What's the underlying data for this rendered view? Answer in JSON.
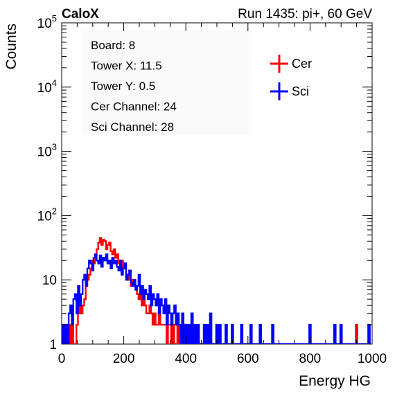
{
  "header": {
    "brand": "CaloX",
    "run_label": "Run 1435: pi+, 60 GeV"
  },
  "info_box": {
    "lines": [
      "Board: 8",
      "Tower X: 11.5",
      "Tower Y: 0.5",
      "Cer Channel: 24",
      "Sci Channel: 28"
    ]
  },
  "chart_data": {
    "type": "line",
    "style": "step-histogram",
    "xlabel": "Energy HG",
    "ylabel": "Counts",
    "xlim": [
      0,
      1000
    ],
    "ylim": [
      1,
      100000
    ],
    "y_scale": "log",
    "x_ticks": [
      0,
      200,
      400,
      600,
      800,
      1000
    ],
    "x_tick_labels": [
      "0",
      "200",
      "400",
      "600",
      "800",
      "1000"
    ],
    "y_ticks": [
      1,
      10,
      100,
      1000,
      10000,
      100000
    ],
    "y_tick_labels": [
      "1",
      "10",
      "10^2",
      "10^3",
      "10^4",
      "10^5"
    ],
    "legend_position": "top-right",
    "grid": false,
    "series": [
      {
        "name": "Cer",
        "color": "#ff0000",
        "bin_width": 5,
        "x": [
          5,
          10,
          15,
          20,
          25,
          30,
          35,
          40,
          45,
          50,
          55,
          60,
          65,
          70,
          75,
          80,
          85,
          90,
          95,
          100,
          105,
          110,
          115,
          120,
          125,
          130,
          135,
          140,
          145,
          150,
          155,
          160,
          165,
          170,
          175,
          180,
          185,
          190,
          195,
          200,
          205,
          210,
          215,
          220,
          225,
          230,
          235,
          240,
          245,
          250,
          255,
          260,
          265,
          270,
          275,
          280,
          285,
          290,
          295,
          300,
          305,
          310,
          315,
          320,
          325,
          330,
          335,
          340,
          345,
          350,
          355,
          360,
          365,
          370,
          375,
          380,
          385,
          390,
          395,
          400,
          410,
          420,
          430,
          440,
          450,
          460,
          470,
          480,
          490,
          500,
          520,
          540,
          560,
          580,
          600,
          620,
          640,
          660,
          680,
          700,
          950
        ],
        "y": [
          1,
          2,
          1,
          1,
          2,
          1,
          2,
          1,
          1,
          2,
          3,
          4,
          3,
          4,
          5,
          8,
          10,
          12,
          15,
          20,
          18,
          22,
          30,
          38,
          45,
          35,
          42,
          40,
          30,
          35,
          38,
          28,
          25,
          30,
          22,
          25,
          18,
          20,
          20,
          15,
          18,
          12,
          10,
          14,
          8,
          10,
          9,
          8,
          6,
          5,
          6,
          4,
          5,
          4,
          3,
          3,
          4,
          3,
          2,
          3,
          2,
          2,
          3,
          2,
          2,
          2,
          2,
          1,
          2,
          2,
          1,
          2,
          1,
          1,
          2,
          1,
          1,
          1,
          1,
          2,
          1,
          1,
          1,
          1,
          1,
          1,
          1,
          1,
          1,
          1,
          1,
          1,
          1,
          1,
          1,
          1,
          1,
          1,
          1,
          1,
          2
        ]
      },
      {
        "name": "Sci",
        "color": "#0000ff",
        "bin_width": 5,
        "x": [
          5,
          10,
          15,
          20,
          25,
          30,
          35,
          40,
          45,
          50,
          55,
          60,
          65,
          70,
          75,
          80,
          85,
          90,
          95,
          100,
          105,
          110,
          115,
          120,
          125,
          130,
          135,
          140,
          145,
          150,
          155,
          160,
          165,
          170,
          175,
          180,
          185,
          190,
          195,
          200,
          205,
          210,
          215,
          220,
          225,
          230,
          235,
          240,
          245,
          250,
          255,
          260,
          265,
          270,
          275,
          280,
          285,
          290,
          295,
          300,
          305,
          310,
          315,
          320,
          325,
          330,
          335,
          340,
          345,
          350,
          355,
          360,
          365,
          370,
          375,
          380,
          390,
          400,
          410,
          420,
          430,
          440,
          450,
          460,
          470,
          480,
          490,
          500,
          510,
          520,
          530,
          540,
          550,
          560,
          570,
          580,
          590,
          600,
          610,
          620,
          630,
          640,
          650,
          660,
          670,
          680,
          690,
          700,
          720,
          740,
          760,
          780,
          800,
          820,
          840,
          860,
          880,
          900,
          930,
          960,
          990
        ],
        "y": [
          2,
          1,
          2,
          1,
          3,
          4,
          2,
          5,
          6,
          3,
          8,
          4,
          6,
          10,
          12,
          8,
          15,
          20,
          18,
          14,
          22,
          25,
          20,
          18,
          24,
          16,
          22,
          20,
          25,
          18,
          20,
          15,
          22,
          18,
          20,
          16,
          14,
          20,
          12,
          15,
          18,
          10,
          12,
          14,
          9,
          8,
          10,
          7,
          8,
          12,
          6,
          8,
          5,
          7,
          6,
          5,
          8,
          4,
          6,
          5,
          4,
          6,
          3,
          5,
          4,
          3,
          5,
          2,
          4,
          3,
          2,
          3,
          4,
          2,
          3,
          2,
          3,
          2,
          2,
          3,
          2,
          2,
          1,
          2,
          2,
          3,
          1,
          2,
          2,
          1,
          2,
          1,
          2,
          1,
          1,
          2,
          1,
          1,
          2,
          1,
          1,
          2,
          1,
          1,
          1,
          2,
          1,
          1,
          1,
          1,
          1,
          1,
          2,
          1,
          1,
          1,
          2,
          2,
          1,
          1,
          2
        ]
      }
    ]
  }
}
